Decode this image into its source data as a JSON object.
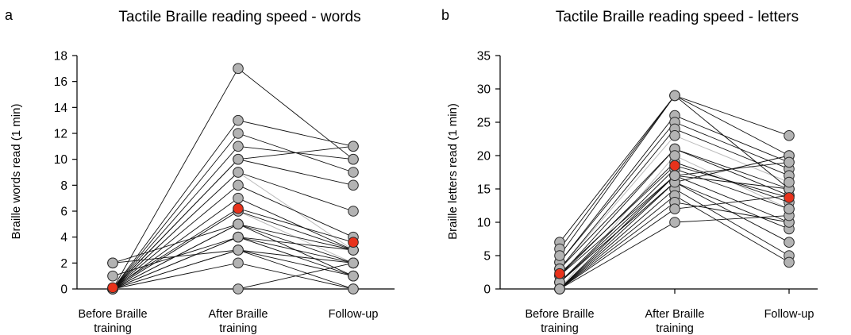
{
  "chart_data": [
    {
      "panel": "a",
      "type": "line",
      "title": "Tactile Braille reading speed - words",
      "ylabel": "Braille words read (1 min)",
      "xlabel": "",
      "categories": [
        "Before Braille training",
        "After Braille training",
        "Follow-up"
      ],
      "ylim": [
        0,
        18
      ],
      "yticks": [
        0,
        2,
        4,
        6,
        8,
        10,
        12,
        14,
        16,
        18
      ],
      "individuals": [
        [
          0,
          17,
          10
        ],
        [
          0,
          13,
          11
        ],
        [
          0,
          12,
          9
        ],
        [
          0,
          11,
          10
        ],
        [
          0,
          10,
          11
        ],
        [
          0,
          10,
          8
        ],
        [
          0,
          9,
          6
        ],
        [
          0,
          8,
          4
        ],
        [
          0,
          7,
          3
        ],
        [
          0,
          6,
          3
        ],
        [
          0,
          5,
          3
        ],
        [
          0,
          5,
          2
        ],
        [
          0,
          4,
          2
        ],
        [
          0,
          4,
          1
        ],
        [
          0,
          3,
          2
        ],
        [
          0,
          3,
          1
        ],
        [
          0,
          2,
          0
        ],
        [
          0,
          0,
          2
        ],
        [
          1,
          4,
          3
        ],
        [
          2,
          5,
          1
        ],
        [
          2,
          3,
          0
        ]
      ],
      "light_lines": [
        [
          0,
          9,
          3
        ],
        [
          0,
          6,
          2
        ]
      ],
      "mean": [
        0.1,
        6.2,
        3.6
      ],
      "colors": {
        "subject": "#b3b3b3",
        "mean": "#e8321b",
        "line": "#111111",
        "light_line": "#bbbbbb"
      }
    },
    {
      "panel": "b",
      "type": "line",
      "title": "Tactile Braille reading speed - letters",
      "ylabel": "Braille letters read (1 min)",
      "xlabel": "",
      "categories": [
        "Before Braille training",
        "After Braille training",
        "Follow-up"
      ],
      "ylim": [
        0,
        35
      ],
      "yticks": [
        0,
        5,
        10,
        15,
        20,
        25,
        30,
        35
      ],
      "individuals": [
        [
          7,
          29,
          23
        ],
        [
          6,
          29,
          20
        ],
        [
          4,
          26,
          19
        ],
        [
          4,
          25,
          18
        ],
        [
          3,
          24,
          17
        ],
        [
          3,
          21,
          15
        ],
        [
          2,
          21,
          14
        ],
        [
          2,
          19,
          13
        ],
        [
          1,
          18,
          12
        ],
        [
          1,
          17,
          10
        ],
        [
          1,
          16,
          9
        ],
        [
          0,
          16,
          7
        ],
        [
          0,
          15,
          5
        ],
        [
          0,
          14,
          4
        ],
        [
          0,
          13,
          10
        ],
        [
          0,
          12,
          14
        ],
        [
          0,
          10,
          11
        ],
        [
          2,
          17,
          15
        ],
        [
          1,
          16,
          20
        ],
        [
          0,
          17,
          19
        ],
        [
          5,
          29,
          15
        ]
      ],
      "light_lines": [
        [
          3,
          23,
          16
        ],
        [
          0,
          20,
          12
        ]
      ],
      "mean": [
        2.3,
        18.5,
        13.7
      ],
      "colors": {
        "subject": "#b3b3b3",
        "mean": "#e8321b",
        "line": "#111111",
        "light_line": "#bbbbbb"
      }
    }
  ]
}
